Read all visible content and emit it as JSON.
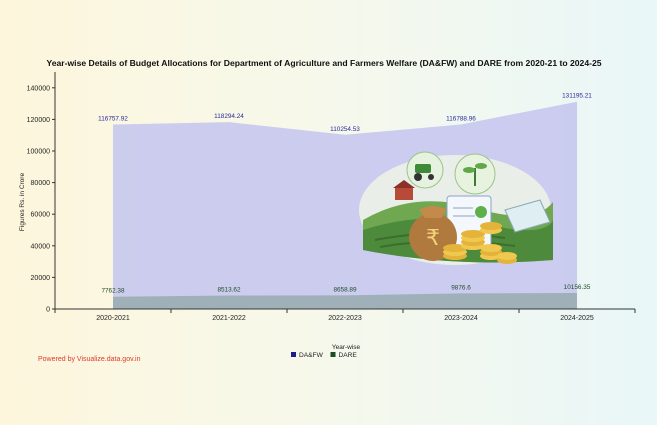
{
  "chart_data": {
    "type": "area",
    "title": "Year-wise Details of Budget Allocations for Department of Agriculture and Farmers Welfare (DA&FW) and DARE from 2020-21 to 2024-25",
    "xlabel": "Year-wise",
    "ylabel": "Figures Rs. in Crore",
    "categories": [
      "2020-2021",
      "2021-2022",
      "2022-2023",
      "2023-2024",
      "2024-2025"
    ],
    "ylim": [
      0,
      150000
    ],
    "yticks": [
      0,
      20000,
      40000,
      60000,
      80000,
      100000,
      120000,
      140000
    ],
    "grid": false,
    "legend_position": "bottom-center",
    "series": [
      {
        "name": "DA&FW",
        "values": [
          116757.92,
          118294.24,
          110254.53,
          116788.96,
          131195.21
        ],
        "labels": [
          "116757.92",
          "118294.24",
          "110254.53",
          "116788.96",
          "131195.21"
        ],
        "color": "#c6c7ee",
        "label_color": "#2a2a9a",
        "legend_color": "#1c1c8a"
      },
      {
        "name": "DARE",
        "values": [
          7762.38,
          8513.62,
          8658.89,
          9876.6,
          10156.35
        ],
        "labels": [
          "7762.38",
          "8513.62",
          "8658.89",
          "9876.6",
          "10156.35"
        ],
        "color": "#9fb0b8",
        "label_color": "#1f4d2a",
        "legend_color": "#1b4d24"
      }
    ]
  },
  "powered_by": "Powered by Visualize.data.gov.in",
  "colors": {
    "axis": "#333333",
    "powered_by": "#e23a2a"
  },
  "illustration": "farm-budget-illustration"
}
